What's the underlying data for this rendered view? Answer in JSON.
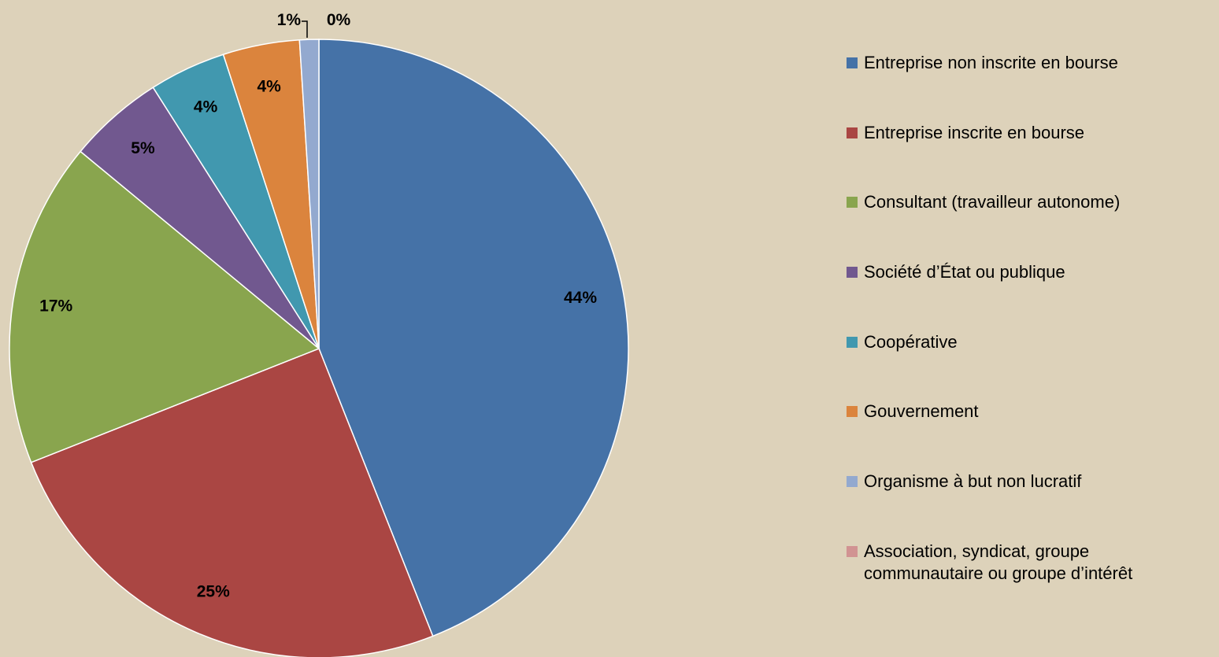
{
  "chart_data": {
    "type": "pie",
    "categories": [
      "Entreprise non inscrite en bourse",
      "Entreprise inscrite en bourse",
      "Consultant (travailleur autonome)",
      "Société d’État ou publique",
      "Coopérative",
      "Gouvernement",
      "Organisme à but non lucratif",
      "Association, syndicat, groupe communautaire ou groupe d’intérêt"
    ],
    "values": [
      44,
      25,
      17,
      5,
      4,
      4,
      1,
      0
    ],
    "value_labels": [
      "44%",
      "25%",
      "17%",
      "5%",
      "4%",
      "4%",
      "1%",
      "0%"
    ],
    "colors": [
      "#4572a7",
      "#aa4643",
      "#89a54e",
      "#71588f",
      "#4198af",
      "#db843d",
      "#93a9cf",
      "#d19392"
    ],
    "legend": "right"
  }
}
